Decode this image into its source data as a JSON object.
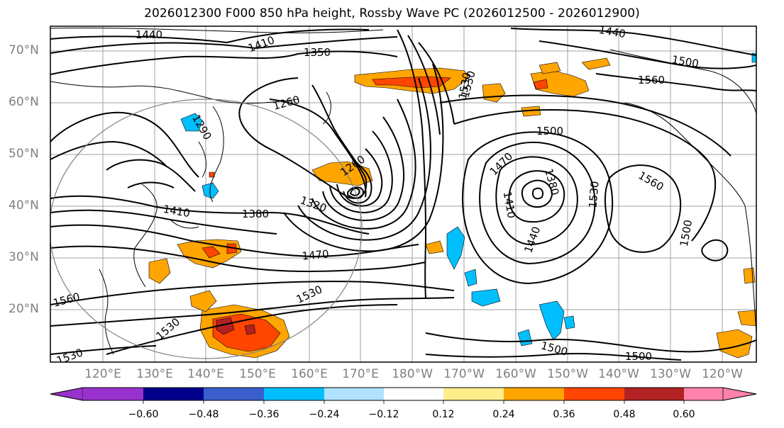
{
  "title": "2026012300 F000 850 hPa height, Rossby Wave PC (2026012500 - 2026012900)",
  "map": {
    "lat_labels": [
      "70°N",
      "60°N",
      "50°N",
      "40°N",
      "30°N",
      "20°N"
    ],
    "lon_labels": [
      "120°E",
      "130°E",
      "140°E",
      "150°E",
      "160°E",
      "170°E",
      "180°W",
      "170°W",
      "160°W",
      "150°W",
      "140°W",
      "130°W",
      "120°W"
    ],
    "contour_labels": [
      "1440",
      "1410",
      "1350",
      "1260",
      "1290",
      "1320",
      "1380",
      "1410",
      "1470",
      "1530",
      "1560",
      "1530",
      "1500",
      "1560",
      "1530",
      "1500",
      "1470",
      "1410",
      "1380",
      "1440",
      "1530",
      "1560",
      "1500",
      "1500",
      "1500",
      "1440",
      "1260",
      "1530",
      "1530"
    ]
  },
  "colorbar": {
    "labels": [
      "−0.60",
      "−0.48",
      "−0.36",
      "−0.24",
      "−0.12",
      "0.12",
      "0.24",
      "0.36",
      "0.48",
      "0.60"
    ],
    "colors": [
      "#9932cc",
      "#00008b",
      "#3a5fcd",
      "#00bfff",
      "#b0e2ff",
      "#ffffff",
      "#ffec8b",
      "#ffa500",
      "#ff4500",
      "#b22222",
      "#ff82ab"
    ]
  }
}
